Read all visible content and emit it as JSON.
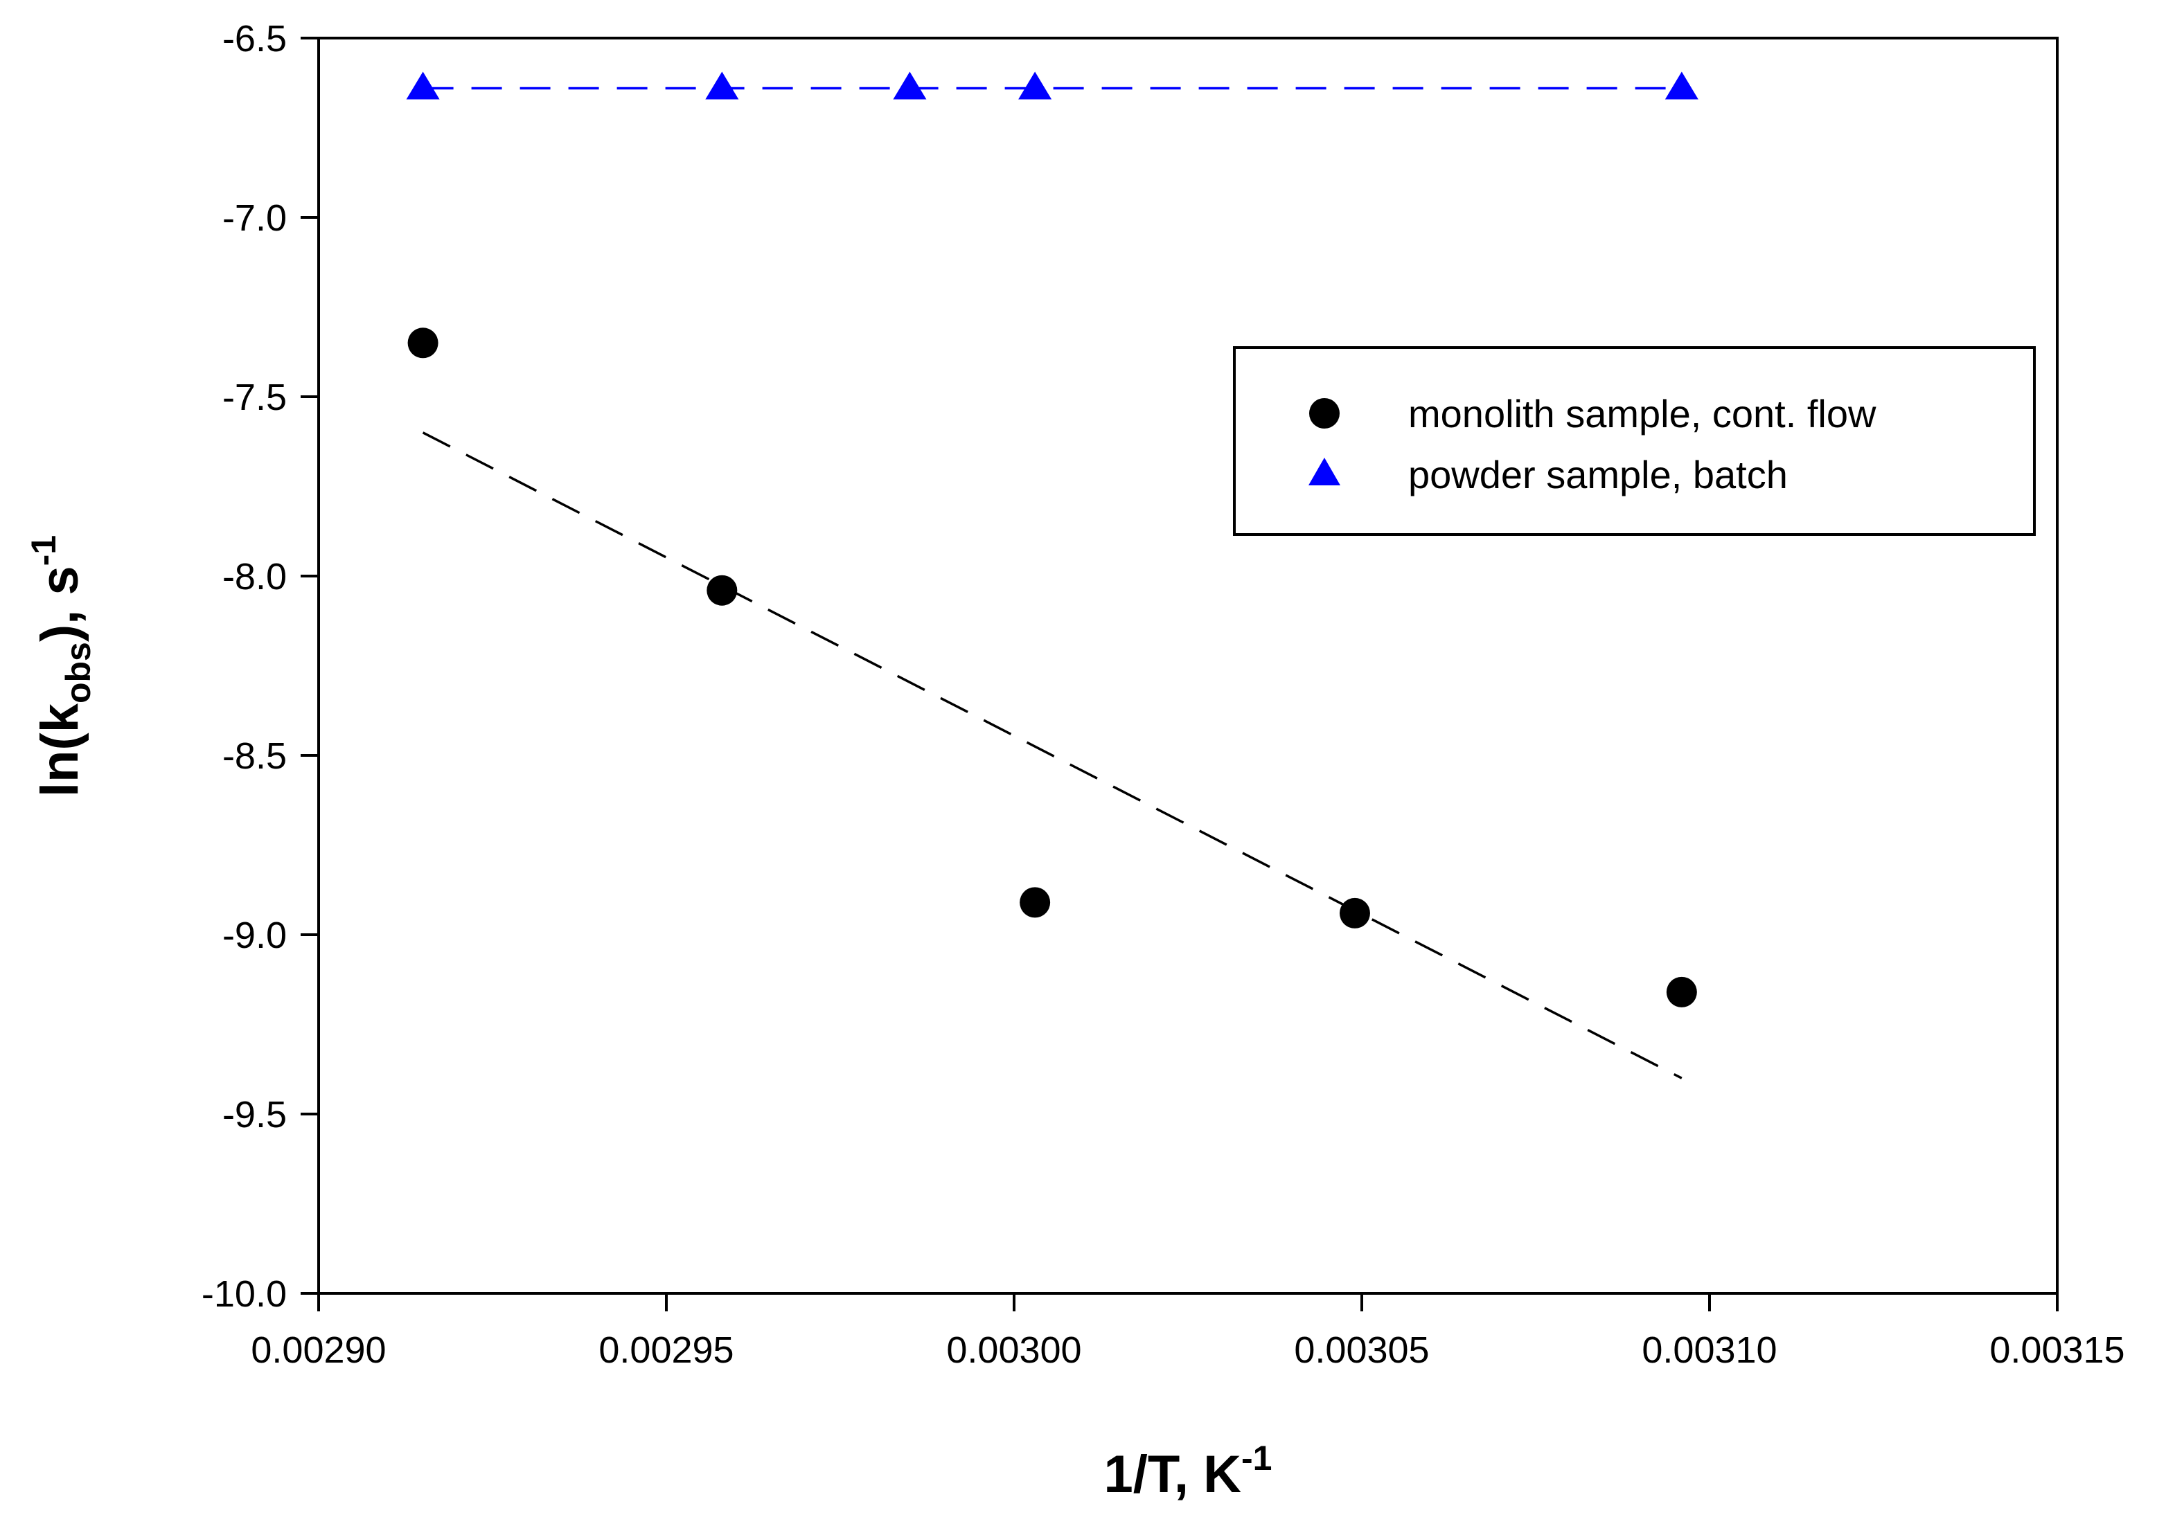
{
  "chart_data": {
    "type": "scatter",
    "title": "",
    "xlabel": {
      "main": "1/T, K",
      "sup": "-1"
    },
    "ylabel": {
      "main": "ln(k",
      "sub": "obs",
      "after": "), s",
      "sup": "-1"
    },
    "xlim": [
      0.0029,
      0.00315
    ],
    "ylim": [
      -10.0,
      -6.5
    ],
    "xticks": [
      0.0029,
      0.00295,
      0.003,
      0.00305,
      0.0031,
      0.00315
    ],
    "xtick_labels": [
      "0.00290",
      "0.00295",
      "0.00300",
      "0.00305",
      "0.00310",
      "0.00315"
    ],
    "yticks": [
      -10.0,
      -9.5,
      -9.0,
      -8.5,
      -8.0,
      -7.5,
      -7.0,
      -6.5
    ],
    "ytick_labels": [
      "-10.0",
      "-9.5",
      "-9.0",
      "-8.5",
      "-8.0",
      "-7.5",
      "-7.0",
      "-6.5"
    ],
    "grid": false,
    "legend_position": "right-upper",
    "series": [
      {
        "name": "monolith sample, cont. flow",
        "marker": "circle",
        "color": "#000000",
        "x": [
          0.002915,
          0.002958,
          0.003003,
          0.003049,
          0.003096
        ],
        "y": [
          -7.35,
          -8.04,
          -8.91,
          -8.94,
          -9.16
        ],
        "fit": {
          "x": [
            0.002915,
            0.003096
          ],
          "y": [
            -7.6,
            -9.4
          ],
          "style": "dashed",
          "color": "#000000"
        }
      },
      {
        "name": "powder sample, batch",
        "marker": "triangle",
        "color": "#0000ff",
        "x": [
          0.002915,
          0.002958,
          0.002985,
          0.003003,
          0.003096
        ],
        "y": [
          -6.64,
          -6.64,
          -6.64,
          -6.64,
          -6.64
        ],
        "fit": {
          "x": [
            0.002915,
            0.003096
          ],
          "y": [
            -6.64,
            -6.64
          ],
          "style": "dashed",
          "color": "#0000ff"
        }
      }
    ]
  }
}
